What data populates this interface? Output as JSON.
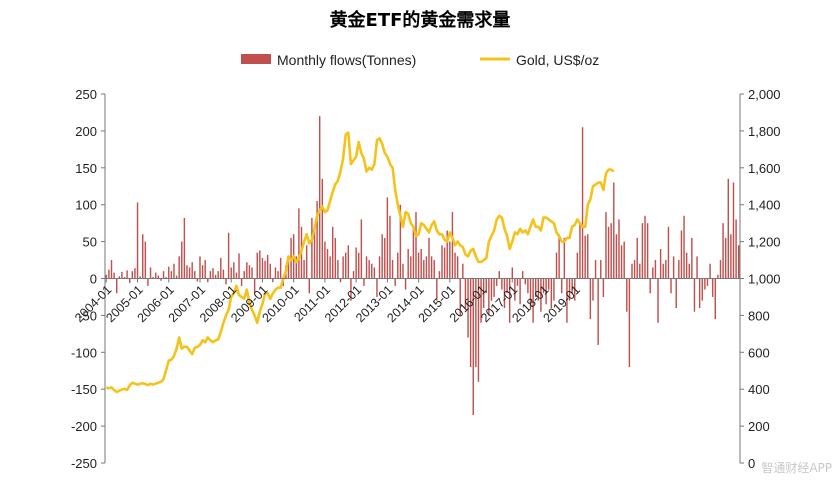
{
  "watermark": "智通财经APP",
  "chart_data": {
    "type": "bar+line",
    "title": "黄金ETF的黄金需求量",
    "legend_position": "top-center",
    "grid": false,
    "series": [
      {
        "name": "Monthly flows(Tonnes)",
        "type": "bar",
        "axis": "left",
        "color": "#c0504d",
        "start": "2004-01",
        "values": [
          5,
          12,
          25,
          8,
          -20,
          3,
          9,
          2,
          11,
          -6,
          10,
          14,
          103,
          3,
          60,
          50,
          -10,
          15,
          2,
          8,
          4,
          -3,
          10,
          2,
          16,
          10,
          20,
          4,
          30,
          50,
          82,
          18,
          15,
          22,
          10,
          -4,
          30,
          18,
          25,
          -5,
          10,
          14,
          5,
          10,
          28,
          12,
          -8,
          62,
          15,
          22,
          8,
          34,
          -10,
          10,
          22,
          18,
          15,
          -20,
          35,
          38,
          28,
          24,
          32,
          20,
          -5,
          15,
          10,
          28,
          -10,
          18,
          24,
          55,
          60,
          30,
          95,
          70,
          25,
          45,
          -20,
          82,
          70,
          105,
          220,
          135,
          50,
          40,
          30,
          70,
          55,
          25,
          -5,
          30,
          35,
          45,
          -30,
          10,
          42,
          35,
          80,
          -10,
          30,
          25,
          20,
          15,
          -25,
          30,
          60,
          55,
          110,
          85,
          25,
          -10,
          35,
          100,
          20,
          -15,
          40,
          30,
          70,
          90,
          35,
          40,
          25,
          30,
          55,
          30,
          25,
          -30,
          10,
          45,
          42,
          65,
          50,
          90,
          35,
          30,
          -50,
          20,
          -40,
          -80,
          -120,
          -185,
          -120,
          -140,
          -60,
          -40,
          -20,
          -50,
          -30,
          -25,
          -10,
          10,
          -15,
          -40,
          -20,
          -60,
          15,
          -30,
          -10,
          -35,
          10,
          -8,
          -20,
          -40,
          -60,
          -25,
          -30,
          -45,
          -20,
          -35,
          -15,
          -40,
          -30,
          35,
          60,
          -20,
          55,
          -60,
          -30,
          -20,
          -30,
          35,
          75,
          205,
          58,
          60,
          -55,
          -30,
          25,
          -90,
          25,
          -25,
          90,
          70,
          75,
          130,
          60,
          80,
          45,
          50,
          -45,
          -120,
          20,
          25,
          55,
          20,
          75,
          85,
          75,
          -20,
          15,
          25,
          -60,
          40,
          20,
          25,
          70,
          -20,
          30,
          -40,
          25,
          65,
          85,
          35,
          20,
          55,
          -45,
          30,
          -40,
          -30,
          -15,
          -10,
          20,
          -25,
          -55,
          5,
          25,
          75,
          55,
          135,
          60,
          130,
          80,
          45
        ]
      },
      {
        "name": "Gold, US$/oz",
        "type": "line",
        "axis": "right",
        "color": "#f5c21b",
        "start": "2004-01",
        "values": [
          408,
          405,
          410,
          395,
          385,
          392,
          398,
          402,
          396,
          420,
          435,
          430,
          425,
          430,
          432,
          428,
          422,
          430,
          425,
          430,
          435,
          440,
          455,
          505,
          555,
          560,
          580,
          620,
          680,
          620,
          630,
          630,
          610,
          590,
          625,
          630,
          640,
          665,
          655,
          680,
          665,
          655,
          665,
          670,
          710,
          760,
          800,
          830,
          900,
          920,
          960,
          910,
          900,
          890,
          940,
          870,
          830,
          800,
          760,
          820,
          860,
          920,
          920,
          890,
          920,
          940,
          950,
          950,
          1000,
          1040,
          1120,
          1100,
          1120,
          1090,
          1110,
          1150,
          1200,
          1240,
          1190,
          1210,
          1270,
          1340,
          1370,
          1390,
          1360,
          1370,
          1420,
          1470,
          1510,
          1530,
          1580,
          1650,
          1780,
          1790,
          1620,
          1640,
          1660,
          1740,
          1680,
          1650,
          1580,
          1600,
          1590,
          1620,
          1750,
          1760,
          1730,
          1680,
          1660,
          1620,
          1600,
          1480,
          1400,
          1340,
          1280,
          1360,
          1350,
          1300,
          1280,
          1230,
          1240,
          1300,
          1290,
          1270,
          1250,
          1290,
          1310,
          1260,
          1240,
          1240,
          1210,
          1200,
          1250,
          1220,
          1180,
          1200,
          1180,
          1170,
          1130,
          1120,
          1150,
          1160,
          1120,
          1090,
          1090,
          1100,
          1110,
          1200,
          1230,
          1260,
          1320,
          1340,
          1330,
          1270,
          1230,
          1160,
          1200,
          1250,
          1240,
          1270,
          1250,
          1260,
          1240,
          1280,
          1320,
          1280,
          1280,
          1260,
          1330,
          1330,
          1320,
          1310,
          1300,
          1250,
          1230,
          1200,
          1200,
          1220,
          1220,
          1280,
          1290,
          1320,
          1300,
          1280,
          1280,
          1400,
          1430,
          1500,
          1510,
          1520,
          1520,
          1480,
          1570,
          1590,
          1590,
          1580
        ]
      }
    ],
    "y_left": {
      "min": -250,
      "max": 250,
      "step": 50,
      "ticks": [
        "250",
        "200",
        "150",
        "100",
        "50",
        "0",
        "-50",
        "-100",
        "-150",
        "-200",
        "-250"
      ]
    },
    "y_right": {
      "min": 0,
      "max": 2000,
      "step": 200,
      "ticks": [
        "2,000",
        "1,800",
        "1,600",
        "1,400",
        "1,200",
        "1,000",
        "800",
        "600",
        "400",
        "200",
        "0"
      ]
    },
    "x_ticks": [
      "2004-01",
      "2005-01",
      "2006-01",
      "2007-01",
      "2008-01",
      "2009-01",
      "2010-01",
      "2011-01",
      "2012-01",
      "2013-01",
      "2014-01",
      "2015-01",
      "2016-01",
      "2017-01",
      "2018-01",
      "2019-01"
    ]
  }
}
